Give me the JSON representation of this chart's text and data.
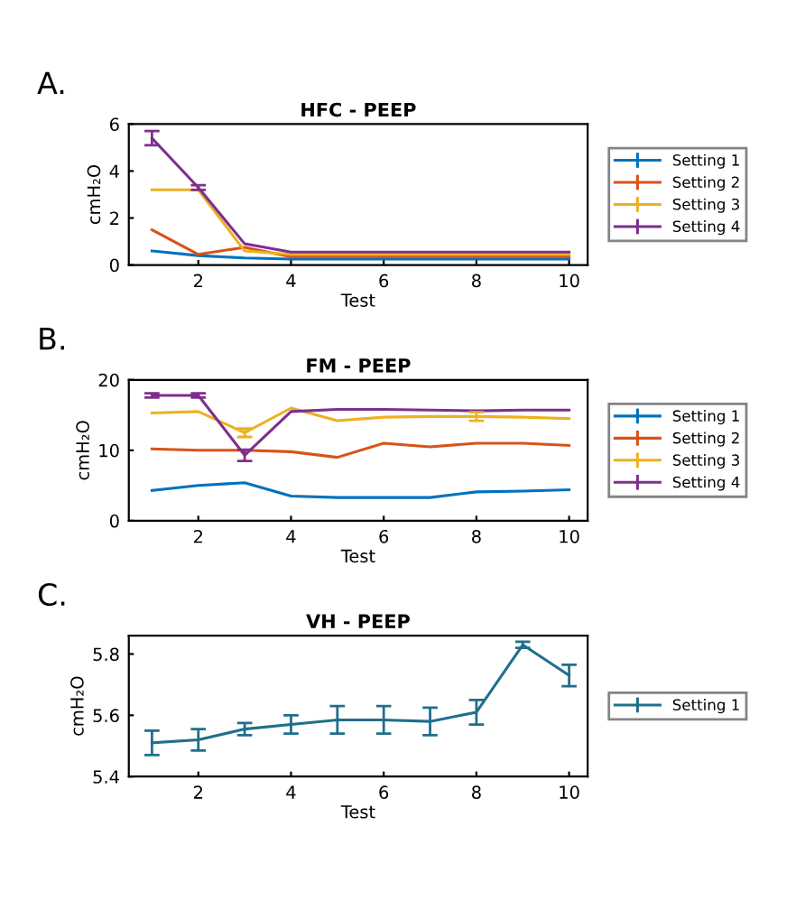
{
  "chart_data": [
    {
      "type": "line",
      "title": "HFC - PEEP",
      "xlabel": "Test",
      "ylabel": "cmH₂O",
      "annotations": [
        "A."
      ],
      "x": [
        1,
        2,
        3,
        4,
        5,
        6,
        7,
        8,
        9,
        10
      ],
      "xlim": [
        0.5,
        10.4
      ],
      "xticks": [
        2,
        4,
        6,
        8,
        10
      ],
      "ylim": [
        0,
        6
      ],
      "yticks": [
        0,
        2,
        4,
        6
      ],
      "legend": "right",
      "series": [
        {
          "name": "Setting 1",
          "color": "#0072bd",
          "values": [
            0.6,
            0.4,
            0.3,
            0.25,
            0.25,
            0.25,
            0.25,
            0.25,
            0.25,
            0.25
          ]
        },
        {
          "name": "Setting 2",
          "color": "#d95319",
          "values": [
            1.5,
            0.45,
            0.75,
            0.35,
            0.35,
            0.35,
            0.35,
            0.35,
            0.35,
            0.35
          ]
        },
        {
          "name": "Setting 3",
          "color": "#edb120",
          "values": [
            3.2,
            3.2,
            0.6,
            0.45,
            0.45,
            0.45,
            0.45,
            0.45,
            0.45,
            0.45
          ]
        },
        {
          "name": "Setting 4",
          "color": "#7e2f8e",
          "values": [
            5.4,
            3.3,
            0.9,
            0.55,
            0.55,
            0.55,
            0.55,
            0.55,
            0.55,
            0.55
          ],
          "errors": [
            0.3,
            0.1,
            null,
            null,
            null,
            null,
            null,
            null,
            null,
            null
          ]
        }
      ]
    },
    {
      "type": "line",
      "title": "FM - PEEP",
      "xlabel": "Test",
      "ylabel": "cmH₂O",
      "annotations": [
        "B."
      ],
      "x": [
        1,
        2,
        3,
        4,
        5,
        6,
        7,
        8,
        9,
        10
      ],
      "xlim": [
        0.5,
        10.4
      ],
      "xticks": [
        2,
        4,
        6,
        8,
        10
      ],
      "ylim": [
        0,
        20
      ],
      "yticks": [
        0,
        10,
        20
      ],
      "legend": "right",
      "series": [
        {
          "name": "Setting 1",
          "color": "#0072bd",
          "values": [
            4.3,
            5.0,
            5.4,
            3.5,
            3.3,
            3.3,
            3.3,
            4.1,
            4.2,
            4.4
          ]
        },
        {
          "name": "Setting 2",
          "color": "#d95319",
          "values": [
            10.2,
            10.0,
            10.0,
            9.8,
            9.0,
            11.0,
            10.5,
            11.0,
            11.0,
            10.7
          ]
        },
        {
          "name": "Setting 3",
          "color": "#edb120",
          "values": [
            15.3,
            15.5,
            12.5,
            16.0,
            14.2,
            14.7,
            14.8,
            14.8,
            14.7,
            14.5
          ],
          "errors": [
            null,
            null,
            0.6,
            null,
            null,
            null,
            null,
            0.6,
            null,
            null
          ]
        },
        {
          "name": "Setting 4",
          "color": "#7e2f8e",
          "values": [
            17.8,
            17.8,
            9.3,
            15.5,
            15.8,
            15.8,
            15.7,
            15.6,
            15.7,
            15.7
          ],
          "errors": [
            0.3,
            0.3,
            0.8,
            null,
            null,
            null,
            null,
            null,
            null,
            null
          ]
        }
      ]
    },
    {
      "type": "line",
      "title": "VH - PEEP",
      "xlabel": "Test",
      "ylabel": "cmH₂O",
      "annotations": [
        "C."
      ],
      "x": [
        1,
        2,
        3,
        4,
        5,
        6,
        7,
        8,
        9,
        10
      ],
      "xlim": [
        0.5,
        10.4
      ],
      "xticks": [
        2,
        4,
        6,
        8,
        10
      ],
      "ylim": [
        5.4,
        5.86
      ],
      "yticks": [
        5.4,
        5.6,
        5.8
      ],
      "legend": "right",
      "series": [
        {
          "name": "Setting 1",
          "color": "#1f6f8b",
          "values": [
            5.51,
            5.52,
            5.555,
            5.57,
            5.585,
            5.585,
            5.58,
            5.61,
            5.83,
            5.73
          ],
          "errors": [
            0.04,
            0.035,
            0.02,
            0.03,
            0.045,
            0.045,
            0.045,
            0.04,
            0.01,
            0.035
          ]
        }
      ]
    }
  ]
}
